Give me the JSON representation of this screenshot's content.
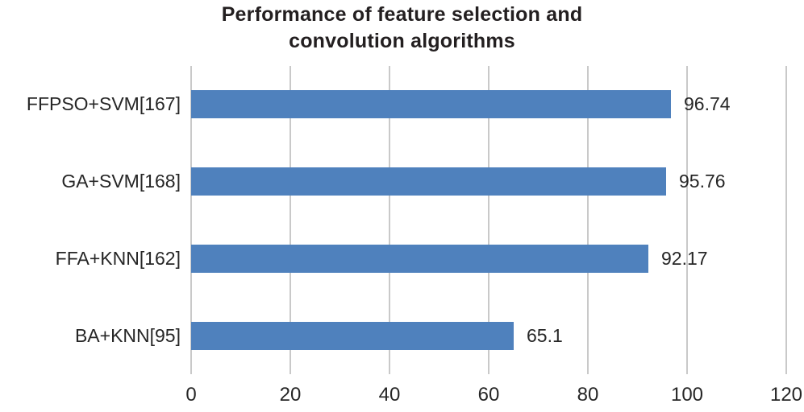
{
  "chart_data": {
    "type": "bar",
    "orientation": "horizontal",
    "title": "Performance of feature selection and convolution algorithms",
    "title_lines": [
      "Performance of feature selection and",
      "convolution algorithms"
    ],
    "categories": [
      "FFPSO+SVM[167]",
      "GA+SVM[168]",
      "FFA+KNN[162]",
      "BA+KNN[95]"
    ],
    "values": [
      96.74,
      95.76,
      92.17,
      65.1
    ],
    "value_labels": [
      "96.74",
      "95.76",
      "92.17",
      "65.1"
    ],
    "xlabel": "",
    "ylabel": "",
    "xlim": [
      0,
      120
    ],
    "xticks": [
      0,
      20,
      40,
      60,
      80,
      100,
      120
    ],
    "grid": "vertical-gridlines-on",
    "legend": "none",
    "colors": {
      "bar": "#4f81bd",
      "gridline": "#c9c9c9",
      "title_text": "#231f20",
      "label_text": "#262626",
      "background": "#ffffff"
    }
  }
}
